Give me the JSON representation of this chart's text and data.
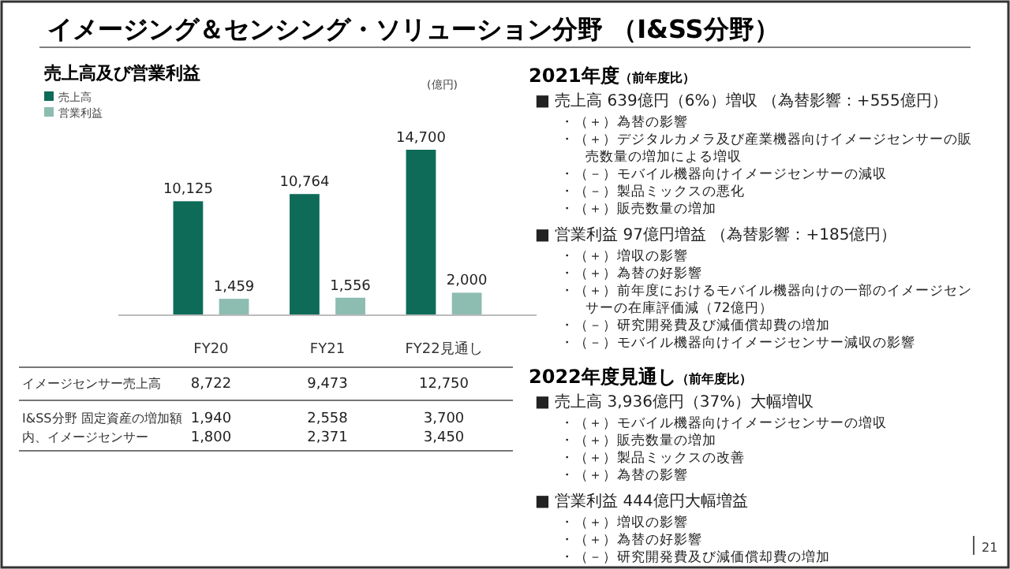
{
  "chart_data": [
    {
      "type": "bar",
      "title": "イメージング＆センシング・ソリューション分野 （I&SS分野）",
      "subtitle": "売上高及び営業利益",
      "ylabel": "(億円)",
      "categories": [
        "FY20",
        "FY21",
        "FY22見通し"
      ],
      "legend": "top left",
      "series": [
        {
          "name": "売上高",
          "color": "#0e6b58",
          "values": [
            10125,
            10764,
            14700
          ],
          "value_labels": [
            "10,125",
            "10,764",
            "14,700"
          ]
        },
        {
          "name": "営業利益",
          "color": "#8dbcb1",
          "values": [
            1459,
            1556,
            2000
          ],
          "value_labels": [
            "1,459",
            "1,556",
            "2,000"
          ]
        }
      ]
    },
    {
      "type": "other",
      "annotations": [
        "イメージセンサー売上高",
        "8,722",
        "9,473",
        "12,750",
        "I&SS分野 固定資産の増加額",
        "1,940",
        "2,558",
        "3,700",
        "内、イメージセンサー",
        "1,800",
        "2,371",
        "3,450"
      ]
    },
    {
      "type": "other",
      "title": "2021年度",
      "subtitle": "（前年度比）",
      "annotations": [
        "■ 売上高 639億円（6%）増収 （為替影響：+555億円）",
        "・（＋）為替の影響",
        "・（＋）デジタルカメラ及び産業機器向けイメージセンサーの販売数量の増加による増収",
        "・（－）モバイル機器向けイメージセンサーの減収",
        "・（－）製品ミックスの悪化",
        "・（＋）販売数量の増加",
        "■ 営業利益 97億円増益 （為替影響：+185億円）",
        "・（＋）増収の影響",
        "・（＋）為替の好影響",
        "・（＋）前年度におけるモバイル機器向けの一部のイメージセンサーの在庫評価減（72億円）",
        "・（－）研究開発費及び減価償却費の増加",
        "・（－）モバイル機器向けイメージセンサー減収の影響"
      ]
    },
    {
      "type": "other",
      "title": "2022年度見通し",
      "subtitle": "（前年度比）",
      "annotations": [
        "■ 売上高 3,936億円（37%）大幅増収",
        "・（＋）モバイル機器向けイメージセンサーの増収",
        "・（＋）販売数量の増加",
        "・（＋）製品ミックスの改善",
        "・（＋）為替の影響",
        "■ 営業利益 444億円大幅増益",
        "・（＋）増収の影響",
        "・（＋）為替の好影響",
        "・（－）研究開発費及び減価償却費の増加"
      ]
    },
    {
      "type": "other",
      "annotations": [
        "21"
      ]
    }
  ]
}
